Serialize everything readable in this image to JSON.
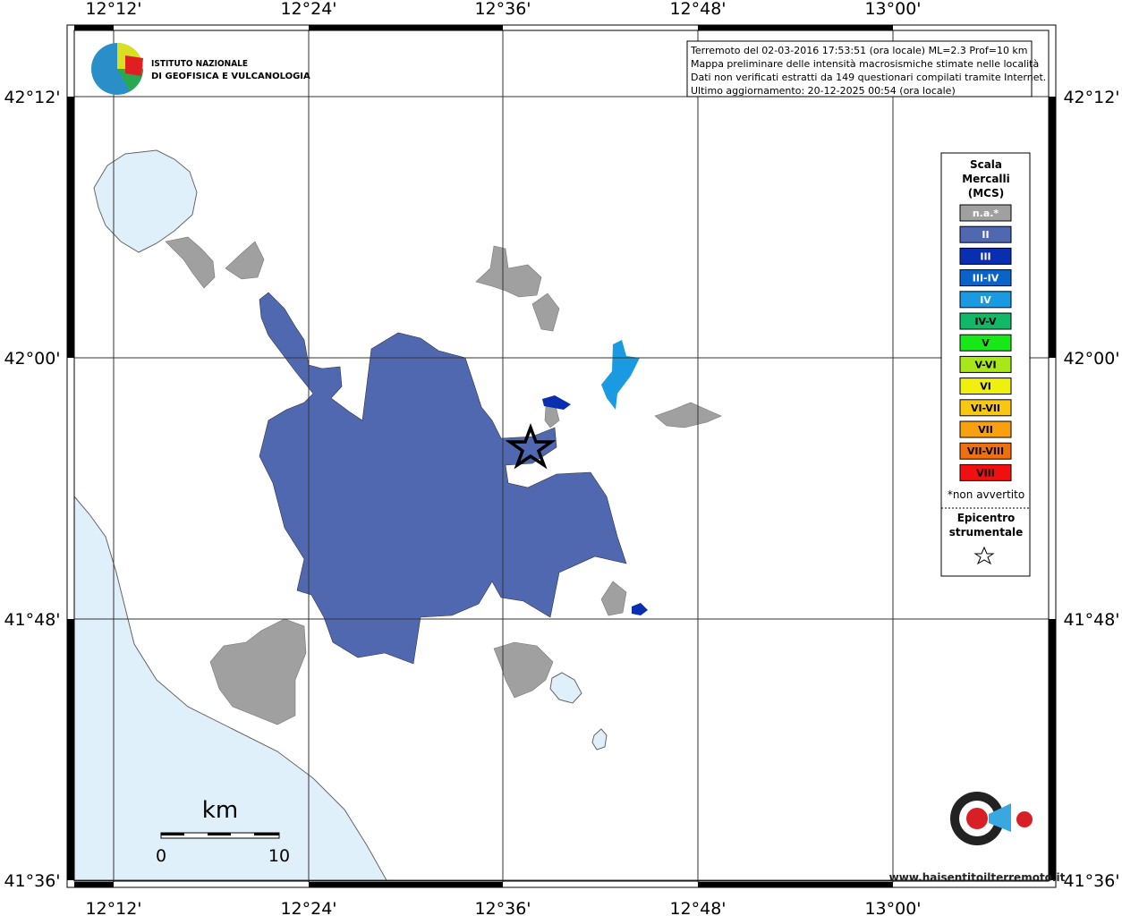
{
  "map": {
    "info_lines": [
      "Terremoto del 02-03-2016 17:53:51 (ora locale) ML=2.3 Prof=10 km",
      "Mappa preliminare delle intensità macrosismiche stimate nelle località",
      "Dati non verificati estratti da 149 questionari compilati tramite Internet.",
      "Ultimo aggiornamento: 20-12-2025 00:54 (ora locale)"
    ],
    "logo": [
      "ISTITUTO NAZIONALE",
      "DI GEOFISICA E VULCANOLOGIA"
    ],
    "longitudes": [
      "12°12'",
      "12°24'",
      "12°36'",
      "12°48'",
      "13°00'"
    ],
    "latitudes": [
      "42°12'",
      "42°00'",
      "41°48'",
      "41°36'"
    ],
    "legend": {
      "title": [
        "Scala",
        "Mercalli",
        "(MCS)"
      ],
      "items": [
        {
          "label": "n.a.*",
          "color": "#a0a0a0"
        },
        {
          "label": "II",
          "color": "#5068b0"
        },
        {
          "label": "III",
          "color": "#0a2eb0"
        },
        {
          "label": "III-IV",
          "color": "#0a64c8"
        },
        {
          "label": "IV",
          "color": "#1a9ae0"
        },
        {
          "label": "IV-V",
          "color": "#10b868"
        },
        {
          "label": "V",
          "color": "#18e818"
        },
        {
          "label": "V-VI",
          "color": "#a8e818"
        },
        {
          "label": "VI",
          "color": "#f0f010"
        },
        {
          "label": "VI-VII",
          "color": "#f8c810"
        },
        {
          "label": "VII",
          "color": "#f8a010"
        },
        {
          "label": "VII-VIII",
          "color": "#f07010"
        },
        {
          "label": "VIII",
          "color": "#f01010"
        }
      ],
      "note": "*non avvertito",
      "epicenter": [
        "Epicentro",
        "strumentale"
      ]
    },
    "scale": {
      "unit": "km",
      "labels": [
        "0",
        "10"
      ]
    },
    "site": "www.haisentitoilterremoto.it"
  }
}
